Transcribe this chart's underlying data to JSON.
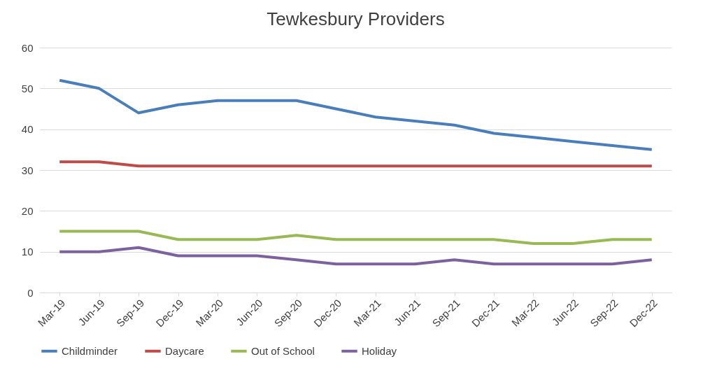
{
  "chart_data": {
    "type": "line",
    "title": "Tewkesbury Providers",
    "categories": [
      "Mar-19",
      "Jun-19",
      "Sep-19",
      "Dec-19",
      "Mar-20",
      "Jun-20",
      "Sep-20",
      "Dec-20",
      "Mar-21",
      "Jun-21",
      "Sep-21",
      "Dec-21",
      "Mar-22",
      "Jun-22",
      "Sep-22",
      "Dec-22"
    ],
    "series": [
      {
        "name": "Childminder",
        "color": "#4a7ebb",
        "values": [
          52,
          50,
          44,
          46,
          47,
          47,
          47,
          45,
          43,
          42,
          41,
          39,
          38,
          37,
          36,
          35
        ]
      },
      {
        "name": "Daycare",
        "color": "#be4b48",
        "values": [
          32,
          32,
          31,
          31,
          31,
          31,
          31,
          31,
          31,
          31,
          31,
          31,
          31,
          31,
          31,
          31
        ]
      },
      {
        "name": "Out of School",
        "color": "#98b954",
        "values": [
          15,
          15,
          15,
          13,
          13,
          13,
          14,
          13,
          13,
          13,
          13,
          13,
          12,
          12,
          13,
          13
        ]
      },
      {
        "name": "Holiday",
        "color": "#7d60a0",
        "values": [
          10,
          10,
          11,
          9,
          9,
          9,
          8,
          7,
          7,
          7,
          8,
          7,
          7,
          7,
          7,
          8
        ]
      }
    ],
    "ylim": [
      0,
      60
    ],
    "yticks": [
      0,
      10,
      20,
      30,
      40,
      50,
      60
    ],
    "grid": "y",
    "legend": "bottom",
    "marker": "none",
    "line_style": "solid"
  }
}
